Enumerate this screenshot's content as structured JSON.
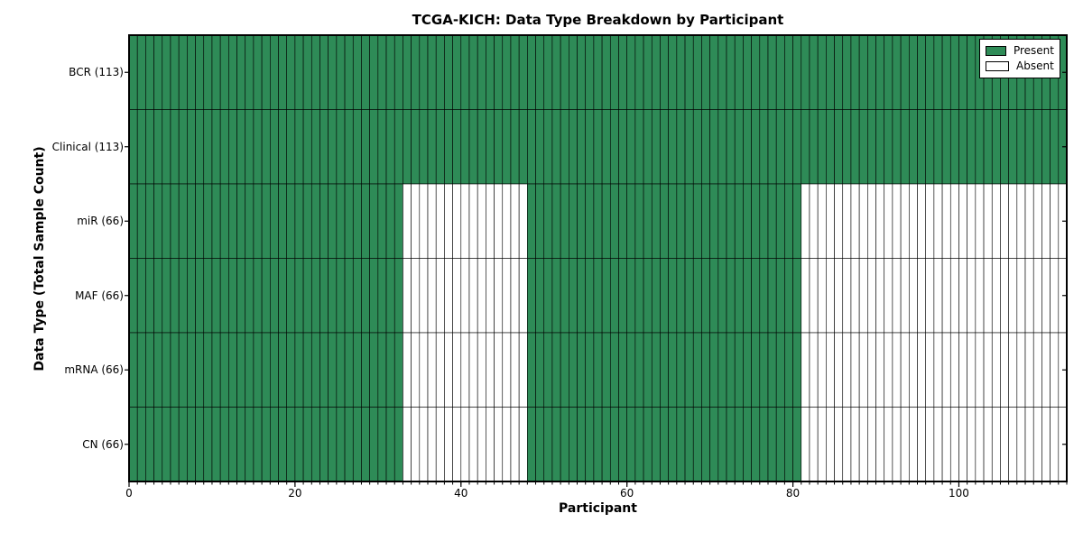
{
  "chart_data": {
    "type": "heatmap",
    "title": "TCGA-KICH: Data Type Breakdown by Participant",
    "xlabel": "Participant",
    "ylabel": "Data Type (Total Sample Count)",
    "x_range": [
      0,
      113
    ],
    "n_participants": 113,
    "x_ticks": [
      0,
      20,
      40,
      60,
      80,
      100
    ],
    "grid": false,
    "legend_position": "upper right",
    "colors": {
      "present": "#2E8B57",
      "absent": "#FFFFFF",
      "cell_border": "#000000",
      "frame": "#000000",
      "background": "#FFFFFF"
    },
    "rows": [
      {
        "label": "BCR (113)",
        "data_type": "BCR",
        "total_sample_count": 113,
        "present_ranges": [
          [
            0,
            113
          ]
        ]
      },
      {
        "label": "Clinical (113)",
        "data_type": "Clinical",
        "total_sample_count": 113,
        "present_ranges": [
          [
            0,
            113
          ]
        ]
      },
      {
        "label": "miR (66)",
        "data_type": "miR",
        "total_sample_count": 66,
        "present_ranges": [
          [
            0,
            33
          ],
          [
            48,
            81
          ]
        ]
      },
      {
        "label": "MAF (66)",
        "data_type": "MAF",
        "total_sample_count": 66,
        "present_ranges": [
          [
            0,
            33
          ],
          [
            48,
            81
          ]
        ]
      },
      {
        "label": "mRNA (66)",
        "data_type": "mRNA",
        "total_sample_count": 66,
        "present_ranges": [
          [
            0,
            33
          ],
          [
            48,
            81
          ]
        ]
      },
      {
        "label": "CN (66)",
        "data_type": "CN",
        "total_sample_count": 66,
        "present_ranges": [
          [
            0,
            33
          ],
          [
            48,
            81
          ]
        ]
      }
    ],
    "legend": [
      {
        "label": "Present",
        "color": "#2E8B57"
      },
      {
        "label": "Absent",
        "color": "#FFFFFF"
      }
    ]
  }
}
